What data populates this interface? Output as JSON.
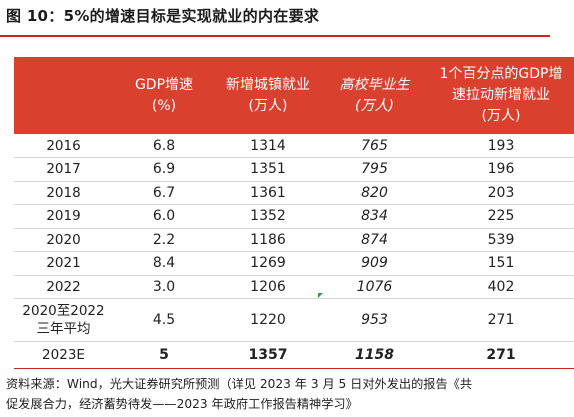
{
  "title": "图 10：5%的增速目标是实现就业的内在要求",
  "table": {
    "headers": [
      {
        "label": "",
        "italic": false
      },
      {
        "label": "GDP增速（%）",
        "line1": "GDP增速",
        "line2": "(%)",
        "italic": false
      },
      {
        "label": "新增城镇就业（万人）",
        "line1": "新增城镇就业",
        "line2": "(万人)",
        "italic": false
      },
      {
        "label": "高校毕业生（万人）",
        "line1": "高校毕业生",
        "line2": "(万人)",
        "italic": true
      },
      {
        "label": "1个百分点的GDP增速拉动新增就业（万人）",
        "line1": "1个百分点的GDP增",
        "line2": "速拉动新增就业",
        "line3": "(万人)",
        "italic": false
      }
    ],
    "rows": [
      {
        "year": "2016",
        "gdp": "6.8",
        "jobs": "1314",
        "grads": "765",
        "pull": "193"
      },
      {
        "year": "2017",
        "gdp": "6.9",
        "jobs": "1351",
        "grads": "795",
        "pull": "196"
      },
      {
        "year": "2018",
        "gdp": "6.7",
        "jobs": "1361",
        "grads": "820",
        "pull": "203"
      },
      {
        "year": "2019",
        "gdp": "6.0",
        "jobs": "1352",
        "grads": "834",
        "pull": "225"
      },
      {
        "year": "2020",
        "gdp": "2.2",
        "jobs": "1186",
        "grads": "874",
        "pull": "539"
      },
      {
        "year": "2021",
        "gdp": "8.4",
        "jobs": "1269",
        "grads": "909",
        "pull": "151"
      },
      {
        "year": "2022",
        "gdp": "3.0",
        "jobs": "1206",
        "grads": "1076",
        "pull": "402"
      },
      {
        "year": "2020至2022三年平均",
        "year_line1": "2020至2022",
        "year_line2": "三年平均",
        "gdp": "4.5",
        "jobs": "1220",
        "grads": "953",
        "pull": "271"
      },
      {
        "year": "2023E",
        "gdp": "5",
        "jobs": "1357",
        "grads": "1158",
        "pull": "271"
      }
    ]
  },
  "source": {
    "line1": "资料来源：Wind，光大证券研究所预测（详见 2023 年 3 月 5 日对外发出的报告《共",
    "line2": "促发展合力，经济蓄势待发——2023 年政府工作报告精神学习》"
  },
  "colors": {
    "accent": "#d9402e",
    "rule": "#c8281e",
    "marker": "#2e9c4a"
  }
}
